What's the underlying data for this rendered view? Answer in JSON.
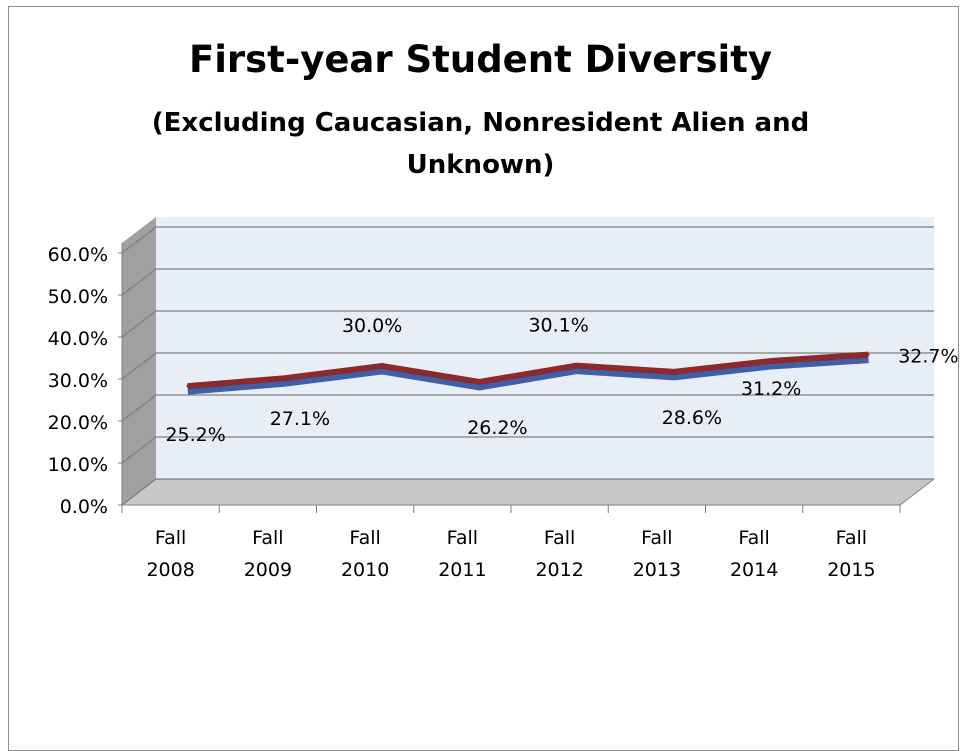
{
  "chart_data": {
    "type": "line",
    "title": "First-year Student Diversity",
    "subtitle_line1": "(Excluding Caucasian, Nonresident Alien and",
    "subtitle_line2": "Unknown)",
    "categories": [
      [
        "Fall",
        "2008"
      ],
      [
        "Fall",
        "2009"
      ],
      [
        "Fall",
        "2010"
      ],
      [
        "Fall",
        "2011"
      ],
      [
        "Fall",
        "2012"
      ],
      [
        "Fall",
        "2013"
      ],
      [
        "Fall",
        "2014"
      ],
      [
        "Fall",
        "2015"
      ]
    ],
    "series": [
      {
        "values": [
          25.2,
          27.1,
          30.0,
          26.2,
          30.1,
          28.6,
          31.2,
          32.7
        ],
        "labels": [
          "25.2%",
          "27.1%",
          "30.0%",
          "26.2%",
          "30.1%",
          "28.6%",
          "31.2%",
          "32.7%"
        ]
      }
    ],
    "yticks": [
      "0.0%",
      "10.0%",
      "20.0%",
      "30.0%",
      "40.0%",
      "50.0%",
      "60.0%"
    ],
    "ylim": [
      0,
      60
    ],
    "grid": true,
    "legend": "none",
    "style": "3d-line",
    "colors": {
      "line": "#8b2a2a",
      "line_edge": "#3f5fa8",
      "wall": "#e8eef7",
      "floor": "#c8c8c8",
      "side": "#a0a0a0"
    }
  }
}
